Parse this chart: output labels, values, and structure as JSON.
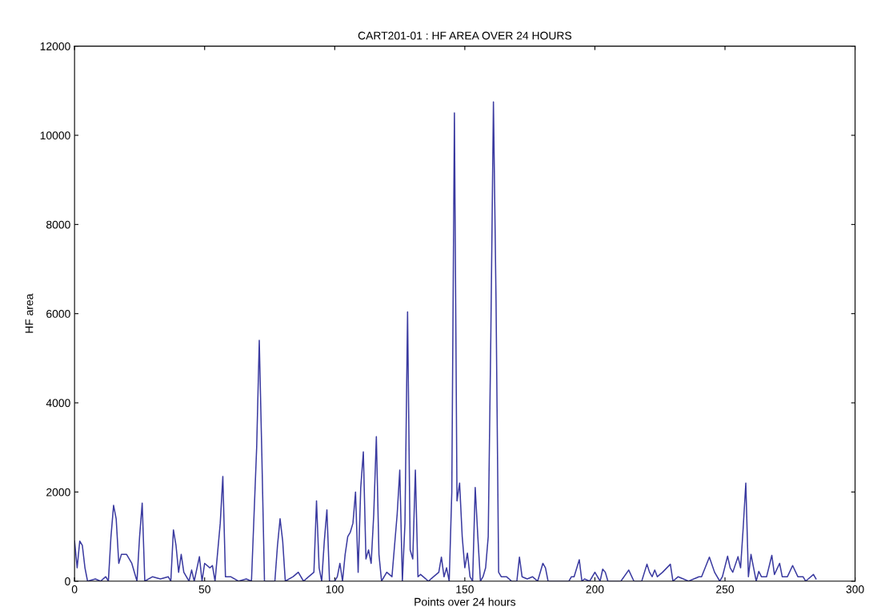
{
  "chart_data": {
    "type": "line",
    "title": "CART201-01 : HF AREA OVER 24 HOURS",
    "xlabel": "Points over 24 hours",
    "ylabel": "HF area",
    "xlim": [
      0,
      300
    ],
    "ylim": [
      0,
      12000
    ],
    "xticks": [
      0,
      50,
      100,
      150,
      200,
      250,
      300
    ],
    "yticks": [
      0,
      2000,
      4000,
      6000,
      8000,
      10000,
      12000
    ],
    "grid": false,
    "legend": false,
    "marker": "none",
    "line_style": "solid",
    "series": [
      {
        "color": "#3a3aa0",
        "x": [
          0,
          1,
          2,
          3,
          4,
          5,
          8,
          10,
          12,
          13,
          14,
          15,
          16,
          17,
          18,
          20,
          22,
          24,
          25,
          26,
          27,
          30,
          33,
          36,
          37,
          38,
          39,
          40,
          41,
          42,
          44,
          45,
          46,
          48,
          49,
          50,
          52,
          53,
          54,
          56,
          57,
          58,
          60,
          63,
          66,
          68,
          70,
          71,
          72,
          73,
          77,
          78,
          79,
          80,
          81,
          84,
          86,
          88,
          90,
          92,
          93,
          94,
          95,
          96,
          97,
          98,
          100,
          101,
          102,
          103,
          104,
          105,
          106,
          107,
          108,
          109,
          110,
          111,
          112,
          113,
          114,
          115,
          116,
          117,
          118,
          120,
          122,
          124,
          125,
          126,
          127,
          128,
          129,
          130,
          131,
          132,
          133,
          134,
          136,
          138,
          140,
          141,
          142,
          143,
          144,
          145,
          146,
          147,
          148,
          149,
          150,
          151,
          152,
          153,
          154,
          155,
          156,
          157,
          158,
          159,
          160,
          161,
          162,
          163,
          164,
          166,
          168,
          170,
          171,
          172,
          174,
          176,
          178,
          180,
          181,
          182,
          186,
          190,
          191,
          192,
          194,
          195,
          196,
          198,
          200,
          201,
          202,
          203,
          204,
          205,
          206,
          210,
          213,
          215,
          218,
          220,
          221,
          222,
          223,
          224,
          226,
          229,
          230,
          232,
          236,
          240,
          241,
          244,
          246,
          248,
          249,
          251,
          252,
          253,
          255,
          256,
          257,
          258,
          259,
          260,
          261,
          262,
          263,
          264,
          266,
          268,
          269,
          271,
          272,
          274,
          276,
          278,
          280,
          281,
          282,
          284,
          285
        ],
        "values": [
          900,
          300,
          900,
          800,
          300,
          0,
          50,
          0,
          100,
          0,
          1000,
          1700,
          1400,
          400,
          600,
          600,
          400,
          0,
          1000,
          1750,
          0,
          100,
          50,
          100,
          0,
          1150,
          800,
          200,
          600,
          200,
          0,
          250,
          0,
          550,
          0,
          400,
          300,
          350,
          0,
          1300,
          2350,
          100,
          100,
          0,
          50,
          0,
          3000,
          5400,
          2800,
          0,
          0,
          800,
          1400,
          900,
          0,
          100,
          200,
          0,
          100,
          200,
          1800,
          300,
          0,
          900,
          1600,
          0,
          0,
          100,
          400,
          0,
          600,
          1000,
          1100,
          1300,
          2000,
          200,
          2100,
          2900,
          500,
          700,
          400,
          1500,
          3240,
          600,
          0,
          200,
          100,
          1500,
          2490,
          0,
          1300,
          6040,
          700,
          500,
          2490,
          100,
          150,
          100,
          0,
          100,
          200,
          540,
          100,
          300,
          0,
          2000,
          10500,
          1800,
          2200,
          1000,
          300,
          630,
          100,
          0,
          2100,
          1000,
          0,
          100,
          300,
          1000,
          5500,
          10750,
          6300,
          200,
          100,
          100,
          0,
          0,
          540,
          100,
          50,
          100,
          0,
          400,
          300,
          0,
          0,
          0,
          100,
          100,
          480,
          0,
          50,
          0,
          200,
          100,
          0,
          270,
          200,
          0,
          0,
          0,
          250,
          0,
          0,
          380,
          200,
          100,
          250,
          100,
          200,
          380,
          0,
          100,
          0,
          100,
          100,
          540,
          200,
          0,
          100,
          560,
          300,
          200,
          550,
          300,
          1200,
          2200,
          100,
          600,
          300,
          0,
          220,
          100,
          100,
          580,
          150,
          400,
          100,
          100,
          350,
          100,
          100,
          0,
          50,
          150,
          50
        ]
      }
    ]
  }
}
